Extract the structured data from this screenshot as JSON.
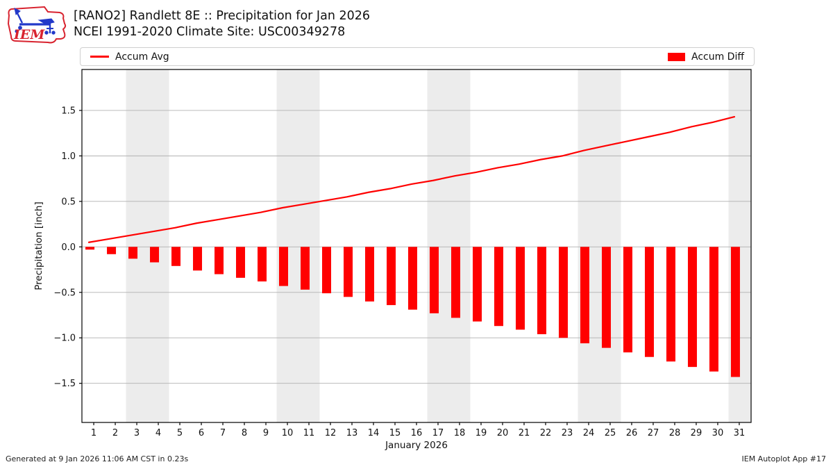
{
  "header": {
    "logo_text": "IEM",
    "title_line1": "[RANO2] Randlett 8E :: Precipitation for Jan 2026",
    "title_line2": "NCEI 1991-2020 Climate Site: USC00349278"
  },
  "legend": {
    "avg_label": "Accum Avg",
    "diff_label": "Accum Diff"
  },
  "footer": {
    "left": "Generated at 9 Jan 2026 11:06 AM CST in 0.23s",
    "right": "IEM Autoplot App #17"
  },
  "colors": {
    "data_red": "#ff0000",
    "band_gray": "#ececec",
    "grid_gray": "#b0b0b0",
    "spine_black": "#000000",
    "logo_red": "#d8232f",
    "logo_blue": "#2239c9"
  },
  "chart_data": {
    "type": "line+bar",
    "title": "[RANO2] Randlett 8E :: Precipitation for Jan 2026 — NCEI 1991-2020 Climate Site: USC00349278",
    "xlabel": "January 2026",
    "ylabel": "Precipitation [inch]",
    "x": [
      1,
      2,
      3,
      4,
      5,
      6,
      7,
      8,
      9,
      10,
      11,
      12,
      13,
      14,
      15,
      16,
      17,
      18,
      19,
      20,
      21,
      22,
      23,
      24,
      25,
      26,
      27,
      28,
      29,
      30,
      31
    ],
    "series": [
      {
        "name": "Accum Avg",
        "type": "line",
        "color": "#ff0000",
        "values": [
          0.05,
          0.09,
          0.13,
          0.17,
          0.21,
          0.26,
          0.3,
          0.34,
          0.38,
          0.43,
          0.47,
          0.51,
          0.55,
          0.6,
          0.64,
          0.69,
          0.73,
          0.78,
          0.82,
          0.87,
          0.91,
          0.96,
          1.0,
          1.06,
          1.11,
          1.16,
          1.21,
          1.26,
          1.32,
          1.37,
          1.43
        ]
      },
      {
        "name": "Accum Diff",
        "type": "bar",
        "color": "#ff0000",
        "values": [
          -0.03,
          -0.08,
          -0.13,
          -0.17,
          -0.21,
          -0.26,
          -0.3,
          -0.34,
          -0.38,
          -0.43,
          -0.47,
          -0.51,
          -0.55,
          -0.6,
          -0.64,
          -0.69,
          -0.73,
          -0.78,
          -0.82,
          -0.87,
          -0.91,
          -0.96,
          -1.0,
          -1.06,
          -1.11,
          -1.16,
          -1.21,
          -1.26,
          -1.32,
          -1.37,
          -1.43
        ]
      }
    ],
    "xlim": [
      0.45,
      31.55
    ],
    "ylim": [
      -1.93,
      1.95
    ],
    "xticks": [
      1,
      2,
      3,
      4,
      5,
      6,
      7,
      8,
      9,
      10,
      11,
      12,
      13,
      14,
      15,
      16,
      17,
      18,
      19,
      20,
      21,
      22,
      23,
      24,
      25,
      26,
      27,
      28,
      29,
      30,
      31
    ],
    "yticks": [
      -1.5,
      -1.0,
      -0.5,
      0.0,
      0.5,
      1.0,
      1.5
    ],
    "grid": "horizontal-only",
    "weekend_bands": [
      [
        2.5,
        4.5
      ],
      [
        9.5,
        11.5
      ],
      [
        16.5,
        18.5
      ],
      [
        23.5,
        25.5
      ],
      [
        30.5,
        31.55
      ]
    ],
    "legend_position": "top"
  }
}
